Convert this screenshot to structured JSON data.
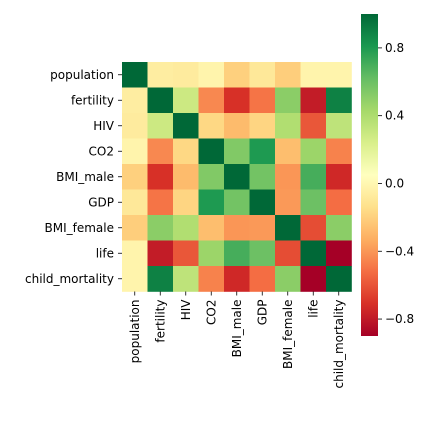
{
  "chart_data": {
    "type": "heatmap",
    "title": "",
    "xlabel": "",
    "ylabel": "",
    "variables": [
      "population",
      "fertility",
      "HIV",
      "CO2",
      "BMI_male",
      "GDP",
      "BMI_female",
      "life",
      "child_mortality"
    ],
    "matrix": [
      [
        1.0,
        -0.06,
        -0.07,
        -0.02,
        -0.2,
        -0.09,
        -0.21,
        -0.02,
        -0.02
      ],
      [
        -0.06,
        1.0,
        0.29,
        -0.44,
        -0.71,
        -0.5,
        0.51,
        -0.79,
        0.9
      ],
      [
        -0.07,
        0.29,
        1.0,
        -0.17,
        -0.28,
        -0.18,
        0.39,
        -0.59,
        0.34
      ],
      [
        -0.02,
        -0.44,
        -0.17,
        1.0,
        0.54,
        0.8,
        -0.27,
        0.46,
        -0.46
      ],
      [
        -0.2,
        -0.71,
        -0.28,
        0.54,
        1.0,
        0.58,
        -0.4,
        0.7,
        -0.74
      ],
      [
        -0.09,
        -0.5,
        -0.18,
        0.8,
        0.58,
        1.0,
        -0.39,
        0.6,
        -0.52
      ],
      [
        -0.21,
        0.51,
        0.39,
        -0.27,
        -0.4,
        -0.39,
        1.0,
        -0.62,
        0.51
      ],
      [
        -0.02,
        -0.79,
        -0.59,
        0.46,
        0.7,
        0.6,
        -0.62,
        1.0,
        -0.91
      ],
      [
        -0.02,
        0.9,
        0.34,
        -0.46,
        -0.74,
        -0.52,
        0.51,
        -0.91,
        1.0
      ]
    ],
    "vmin": -0.9,
    "vmax": 1.0,
    "colormap": "RdYlGn",
    "colorbar": {
      "ticks": [
        0.8,
        0.4,
        0.0,
        -0.4,
        -0.8
      ],
      "tick_labels": [
        "0.8",
        "0.4",
        "0.0",
        "−0.4",
        "−0.8"
      ]
    }
  }
}
